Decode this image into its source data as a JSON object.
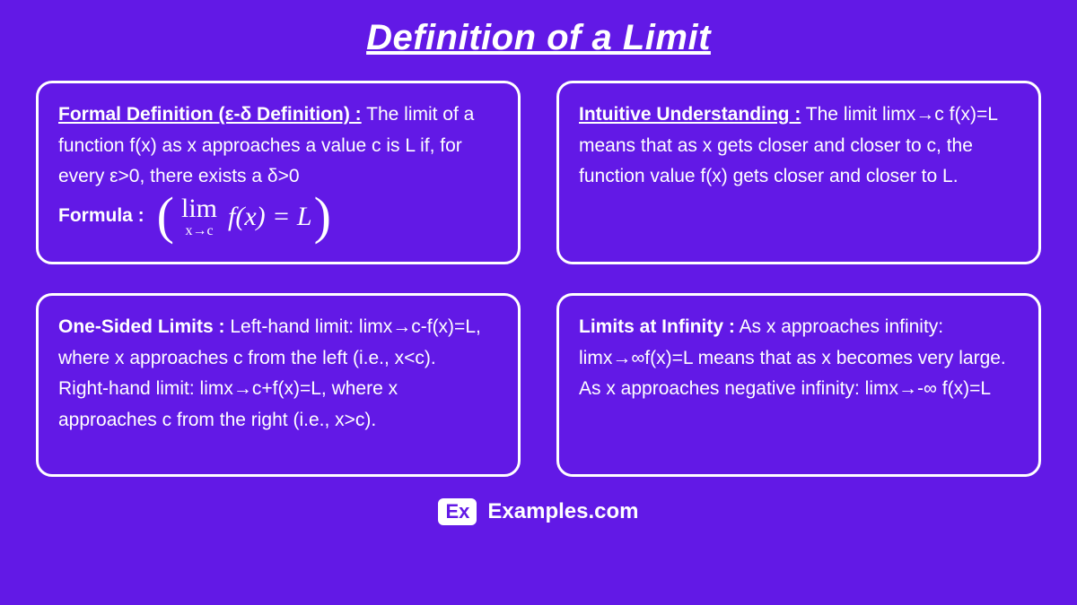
{
  "title": "Definition of a Limit",
  "colors": {
    "background": "#6219e6",
    "text": "#ffffff",
    "border": "#ffffff"
  },
  "cards": {
    "formal": {
      "heading": "Formal Definition (ε-δ Definition) :",
      "heading_underlined": true,
      "body": " The limit of a function f(x) as x approaches a value c is L if, for every ε>0, there exists a δ>0",
      "formula_label": "Formula :",
      "formula": {
        "lim": "lim",
        "sub": "x→c",
        "expr": "f(x) = L"
      }
    },
    "intuitive": {
      "heading": "Intuitive Understanding :",
      "heading_underlined": true,
      "body": "  The limit limx→c f(x)=L means that as x gets closer and closer to c, the function value f(x) gets closer and closer to L."
    },
    "onesided": {
      "heading": "One-Sided Limits :",
      "heading_underlined": false,
      "body1": "  Left-hand limit: limx→c-f(x)=L, where x approaches c from the left (i.e., x<c).",
      "body2": "Right-hand limit: limx→c+f(x)=L, where x approaches c from the right (i.e., x>c)."
    },
    "infinity": {
      "heading": "Limits at Infinity :",
      "heading_underlined": false,
      "body1": "  As x approaches infinity: limx→∞f(x)=L means that as x becomes very large.",
      "body2": "As x approaches negative infinity: limx→-∞ f(x)=L"
    }
  },
  "footer": {
    "logo": "Ex",
    "text": "Examples.com"
  },
  "typography": {
    "title_fontsize": 40,
    "card_fontsize": 21,
    "formula_fontsize": 30
  }
}
